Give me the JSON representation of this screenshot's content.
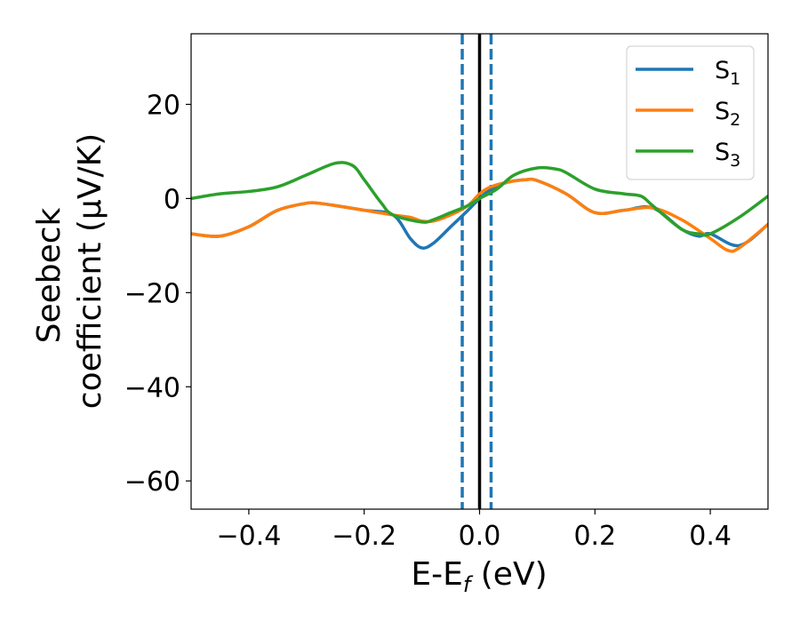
{
  "chart_data": {
    "type": "line",
    "xlabel": "E-E",
    "xlabel_sub": "f",
    "xlabel_unit": " (eV)",
    "ylabel_line1": "Seebeck",
    "ylabel_line2": "coefficient  (μV/K)",
    "xlim": [
      -0.5,
      0.5
    ],
    "ylim": [
      -66,
      35
    ],
    "x_ticks": [
      -0.4,
      -0.2,
      0.0,
      0.2,
      0.4
    ],
    "x_tick_labels": [
      "−0.4",
      "−0.2",
      "0.0",
      "0.2",
      "0.4"
    ],
    "y_ticks": [
      20,
      0,
      -20,
      -40,
      -60
    ],
    "y_tick_labels": [
      "20",
      "0",
      "−20",
      "−40",
      "−60"
    ],
    "grid": false,
    "legend_position": "top-right",
    "vertical_lines": [
      {
        "x": -0.03,
        "style": "dashed",
        "color": "#1f77b4"
      },
      {
        "x": 0.0,
        "style": "solid",
        "color": "#000000"
      },
      {
        "x": 0.02,
        "style": "dashed",
        "color": "#1f77b4"
      }
    ],
    "series": [
      {
        "name": "S",
        "name_sub": "1",
        "color": "#1f77b4",
        "x": [
          -0.5,
          -0.45,
          -0.4,
          -0.35,
          -0.3,
          -0.28,
          -0.25,
          -0.2,
          -0.15,
          -0.12,
          -0.1,
          -0.08,
          -0.05,
          -0.02,
          0.0,
          0.02,
          0.05,
          0.08,
          0.1,
          0.15,
          0.2,
          0.25,
          0.3,
          0.35,
          0.38,
          0.4,
          0.45,
          0.5
        ],
        "y": [
          -7.5,
          -8,
          -6,
          -2.5,
          -1,
          -1,
          -1.5,
          -2.5,
          -3.5,
          -8.5,
          -10.5,
          -9.5,
          -6,
          -2.5,
          0,
          2,
          3.5,
          4,
          3.8,
          1,
          -3,
          -2.5,
          -2,
          -6.5,
          -8,
          -7.5,
          -10,
          -5.5
        ]
      },
      {
        "name": "S",
        "name_sub": "2",
        "color": "#ff7f0e",
        "x": [
          -0.5,
          -0.45,
          -0.4,
          -0.35,
          -0.3,
          -0.28,
          -0.25,
          -0.2,
          -0.15,
          -0.12,
          -0.1,
          -0.08,
          -0.05,
          -0.02,
          0.0,
          0.02,
          0.05,
          0.08,
          0.1,
          0.15,
          0.2,
          0.25,
          0.3,
          0.35,
          0.4,
          0.43,
          0.45,
          0.5
        ],
        "y": [
          -7.5,
          -8,
          -6,
          -2.5,
          -1,
          -1,
          -1.5,
          -2.5,
          -3.5,
          -4,
          -4.8,
          -4.8,
          -3.5,
          -1.5,
          1,
          2.5,
          3.5,
          4,
          3.8,
          1,
          -3,
          -2.5,
          -2,
          -4.5,
          -8.5,
          -11,
          -10.5,
          -5.5
        ]
      },
      {
        "name": "S",
        "name_sub": "3",
        "color": "#2ca02c",
        "x": [
          -0.5,
          -0.45,
          -0.4,
          -0.35,
          -0.3,
          -0.25,
          -0.22,
          -0.2,
          -0.17,
          -0.15,
          -0.1,
          -0.08,
          -0.05,
          -0.02,
          0.0,
          0.03,
          0.06,
          0.1,
          0.13,
          0.15,
          0.2,
          0.25,
          0.28,
          0.3,
          0.35,
          0.38,
          0.4,
          0.45,
          0.5
        ],
        "y": [
          0,
          1,
          1.5,
          2.5,
          5,
          7.5,
          7,
          4,
          -1,
          -3.5,
          -5,
          -4.5,
          -3,
          -1.5,
          0,
          2,
          5,
          6.5,
          6.3,
          5.5,
          2,
          1,
          0.5,
          -1.5,
          -6.5,
          -7.5,
          -7.5,
          -4,
          0.5
        ]
      }
    ]
  }
}
